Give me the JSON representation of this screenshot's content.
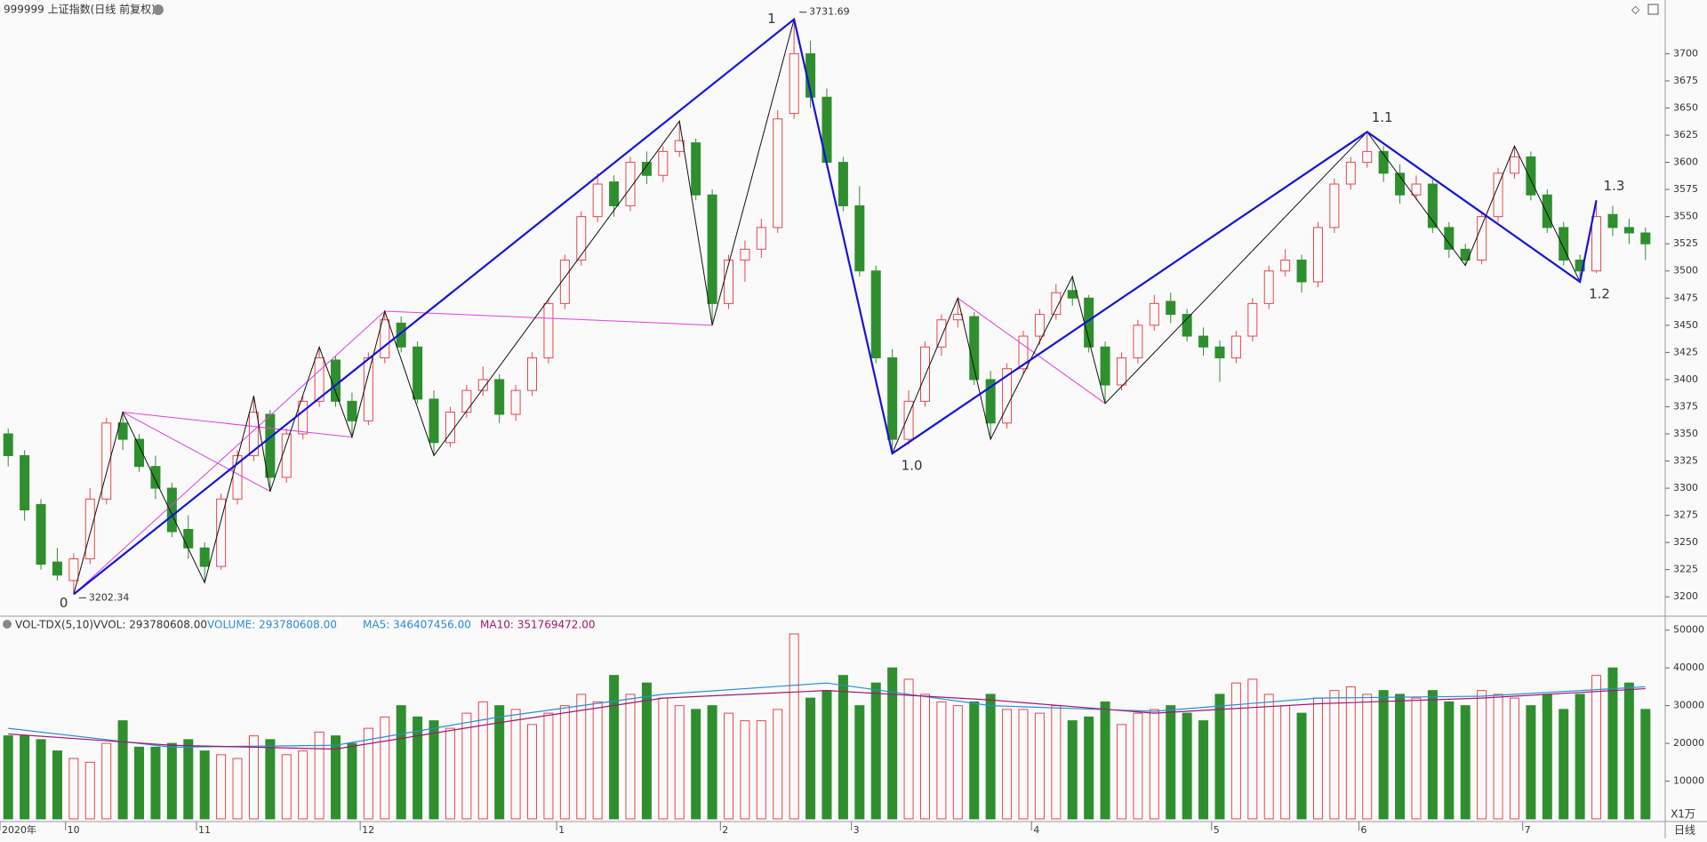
{
  "header": {
    "title": "999999 上证指数(日线 前复权)"
  },
  "chart_data": [
    {
      "type": "candlestick",
      "ylim": [
        3183,
        3738
      ],
      "yticks": [
        3200,
        3225,
        3250,
        3275,
        3300,
        3325,
        3350,
        3375,
        3400,
        3425,
        3450,
        3475,
        3500,
        3525,
        3550,
        3575,
        3600,
        3625,
        3650,
        3675,
        3700
      ],
      "up_color": "#e8474c",
      "down_color": "#2f8f2f",
      "candles": [
        [
          3350,
          3355,
          3320,
          3330
        ],
        [
          3330,
          3335,
          3270,
          3280
        ],
        [
          3285,
          3290,
          3225,
          3230
        ],
        [
          3232,
          3245,
          3215,
          3220
        ],
        [
          3215,
          3240,
          3202.34,
          3235
        ],
        [
          3235,
          3300,
          3230,
          3290
        ],
        [
          3290,
          3365,
          3285,
          3360
        ],
        [
          3360,
          3370,
          3335,
          3345
        ],
        [
          3345,
          3350,
          3315,
          3320
        ],
        [
          3320,
          3330,
          3290,
          3300
        ],
        [
          3300,
          3305,
          3255,
          3260
        ],
        [
          3262,
          3275,
          3235,
          3245
        ],
        [
          3245,
          3250,
          3213,
          3228
        ],
        [
          3228,
          3295,
          3225,
          3290
        ],
        [
          3290,
          3335,
          3285,
          3330
        ],
        [
          3330,
          3385,
          3325,
          3370
        ],
        [
          3368,
          3372,
          3297,
          3310
        ],
        [
          3310,
          3355,
          3305,
          3350
        ],
        [
          3350,
          3385,
          3345,
          3380
        ],
        [
          3380,
          3430,
          3375,
          3420
        ],
        [
          3418,
          3422,
          3375,
          3380
        ],
        [
          3380,
          3388,
          3347,
          3362
        ],
        [
          3362,
          3425,
          3358,
          3420
        ],
        [
          3420,
          3463,
          3415,
          3455
        ],
        [
          3452,
          3458,
          3425,
          3430
        ],
        [
          3430,
          3435,
          3378,
          3382
        ],
        [
          3382,
          3390,
          3330,
          3342
        ],
        [
          3342,
          3375,
          3338,
          3370
        ],
        [
          3370,
          3395,
          3365,
          3390
        ],
        [
          3390,
          3412,
          3385,
          3400
        ],
        [
          3400,
          3405,
          3360,
          3368
        ],
        [
          3368,
          3395,
          3362,
          3390
        ],
        [
          3390,
          3425,
          3385,
          3420
        ],
        [
          3420,
          3475,
          3415,
          3470
        ],
        [
          3470,
          3515,
          3465,
          3510
        ],
        [
          3510,
          3555,
          3505,
          3550
        ],
        [
          3550,
          3590,
          3545,
          3580
        ],
        [
          3582,
          3588,
          3550,
          3560
        ],
        [
          3560,
          3605,
          3555,
          3600
        ],
        [
          3600,
          3610,
          3580,
          3588
        ],
        [
          3588,
          3615,
          3582,
          3610
        ],
        [
          3610,
          3638,
          3605,
          3620
        ],
        [
          3618,
          3622,
          3565,
          3570
        ],
        [
          3570,
          3575,
          3450,
          3470
        ],
        [
          3470,
          3515,
          3465,
          3510
        ],
        [
          3510,
          3528,
          3490,
          3520
        ],
        [
          3520,
          3548,
          3512,
          3540
        ],
        [
          3540,
          3648,
          3535,
          3640
        ],
        [
          3645,
          3731.69,
          3640,
          3700
        ],
        [
          3700,
          3712,
          3650,
          3660
        ],
        [
          3660,
          3668,
          3595,
          3600
        ],
        [
          3600,
          3605,
          3555,
          3560
        ],
        [
          3560,
          3578,
          3495,
          3500
        ],
        [
          3500,
          3505,
          3415,
          3420
        ],
        [
          3420,
          3428,
          3332,
          3345
        ],
        [
          3345,
          3390,
          3340,
          3380
        ],
        [
          3380,
          3435,
          3375,
          3430
        ],
        [
          3430,
          3460,
          3422,
          3455
        ],
        [
          3455,
          3475,
          3448,
          3460
        ],
        [
          3458,
          3462,
          3395,
          3400
        ],
        [
          3400,
          3408,
          3345,
          3360
        ],
        [
          3360,
          3415,
          3355,
          3410
        ],
        [
          3410,
          3445,
          3405,
          3440
        ],
        [
          3440,
          3465,
          3432,
          3460
        ],
        [
          3460,
          3488,
          3455,
          3480
        ],
        [
          3482,
          3495,
          3468,
          3475
        ],
        [
          3475,
          3478,
          3425,
          3430
        ],
        [
          3430,
          3435,
          3378,
          3395
        ],
        [
          3395,
          3425,
          3390,
          3420
        ],
        [
          3420,
          3455,
          3415,
          3450
        ],
        [
          3450,
          3478,
          3445,
          3470
        ],
        [
          3472,
          3480,
          3452,
          3460
        ],
        [
          3460,
          3465,
          3435,
          3440
        ],
        [
          3440,
          3448,
          3422,
          3430
        ],
        [
          3430,
          3436,
          3398,
          3420
        ],
        [
          3420,
          3445,
          3415,
          3440
        ],
        [
          3440,
          3475,
          3435,
          3470
        ],
        [
          3470,
          3505,
          3465,
          3500
        ],
        [
          3500,
          3520,
          3495,
          3510
        ],
        [
          3510,
          3515,
          3480,
          3490
        ],
        [
          3490,
          3545,
          3485,
          3540
        ],
        [
          3540,
          3585,
          3535,
          3580
        ],
        [
          3580,
          3605,
          3575,
          3600
        ],
        [
          3600,
          3628,
          3595,
          3610
        ],
        [
          3610,
          3615,
          3582,
          3590
        ],
        [
          3590,
          3598,
          3562,
          3570
        ],
        [
          3570,
          3588,
          3565,
          3580
        ],
        [
          3580,
          3584,
          3535,
          3540
        ],
        [
          3540,
          3545,
          3512,
          3520
        ],
        [
          3520,
          3525,
          3505,
          3510
        ],
        [
          3510,
          3555,
          3506,
          3550
        ],
        [
          3550,
          3595,
          3545,
          3590
        ],
        [
          3590,
          3615,
          3585,
          3605
        ],
        [
          3605,
          3610,
          3565,
          3570
        ],
        [
          3570,
          3575,
          3535,
          3540
        ],
        [
          3540,
          3545,
          3505,
          3510
        ],
        [
          3510,
          3515,
          3490,
          3500
        ],
        [
          3500,
          3565,
          3498,
          3550
        ],
        [
          3552,
          3560,
          3532,
          3540
        ],
        [
          3540,
          3548,
          3525,
          3535
        ],
        [
          3535,
          3540,
          3510,
          3525
        ]
      ],
      "blue_wave": {
        "color": "#1414d8",
        "x": [
          4,
          48,
          54,
          83,
          96,
          97
        ],
        "values": [
          3202.34,
          3731.69,
          3332,
          3628,
          3490,
          3565
        ],
        "labels": [
          "0",
          "1",
          "1.0",
          "1.1",
          "1.2",
          "1.3"
        ]
      },
      "black_zigzag": {
        "color": "#111111",
        "x": [
          4,
          7,
          12,
          15,
          16,
          19,
          21,
          23,
          26,
          41,
          43,
          48,
          54,
          58,
          60,
          65,
          67,
          83,
          89,
          92,
          96
        ],
        "values": [
          3202.34,
          3370,
          3213,
          3385,
          3297,
          3430,
          3347,
          3463,
          3330,
          3638,
          3450,
          3731.69,
          3332,
          3475,
          3345,
          3495,
          3378,
          3628,
          3505,
          3615,
          3490
        ]
      },
      "magenta_lines": {
        "color": "#e040e0",
        "segments": [
          {
            "x": [
              4,
              23
            ],
            "values": [
              3202.34,
              3463
            ]
          },
          {
            "x": [
              7,
              16
            ],
            "values": [
              3370,
              3297
            ]
          },
          {
            "x": [
              7,
              21
            ],
            "values": [
              3370,
              3347
            ]
          },
          {
            "x": [
              23,
              43
            ],
            "values": [
              3463,
              3450
            ]
          },
          {
            "x": [
              58,
              67
            ],
            "values": [
              3475,
              3378
            ]
          }
        ]
      },
      "date_axis": {
        "labels": [
          "2020年",
          "10",
          "11",
          "12",
          "1",
          "2",
          "3",
          "4",
          "5",
          "6",
          "7"
        ],
        "index": [
          0,
          4,
          12,
          22,
          34,
          44,
          52,
          63,
          74,
          83,
          93
        ],
        "period": "日线"
      }
    },
    {
      "type": "volume",
      "header": {
        "name": "VOL-TDX(5,10)",
        "vvol": "VVOL: 293780608.00",
        "volume": "VOLUME: 293780608.00",
        "ma5": "MA5: 346407456.00",
        "ma10": "MA10: 351769472.00"
      },
      "unit": "X1万",
      "ylim": [
        0,
        53000
      ],
      "yticks": [
        10000,
        20000,
        30000,
        40000,
        50000
      ],
      "values": [
        22000,
        22000,
        21000,
        18000,
        16000,
        15000,
        20000,
        26000,
        19000,
        19000,
        20000,
        21000,
        18000,
        17000,
        16000,
        22000,
        21000,
        17000,
        18000,
        23000,
        22000,
        20000,
        24000,
        27000,
        30000,
        27000,
        26000,
        24000,
        28000,
        31000,
        30000,
        29000,
        25000,
        28000,
        30000,
        33000,
        31000,
        38000,
        33000,
        36000,
        32000,
        30000,
        29000,
        30000,
        28000,
        26000,
        26000,
        29000,
        49000,
        32000,
        34000,
        38000,
        30000,
        36000,
        40000,
        37000,
        33000,
        31000,
        30000,
        31000,
        33000,
        29000,
        29000,
        28000,
        30000,
        26000,
        27000,
        31000,
        25000,
        28000,
        29000,
        30000,
        28000,
        26000,
        33000,
        36000,
        37000,
        33000,
        30000,
        28000,
        32000,
        34000,
        35000,
        33000,
        34000,
        33000,
        32000,
        34000,
        31000,
        30000,
        34000,
        33000,
        32000,
        30000,
        33000,
        29000,
        33000,
        38000,
        40000,
        36000,
        29000
      ],
      "series": [
        {
          "color": "#2a8cd8",
          "x": [
            0,
            10,
            20,
            30,
            40,
            50,
            60,
            70,
            80,
            90,
            100
          ],
          "values": [
            24000,
            19000,
            19500,
            27000,
            33000,
            36000,
            30000,
            28500,
            32000,
            32500,
            35000
          ]
        },
        {
          "color": "#a0186e",
          "x": [
            0,
            10,
            20,
            30,
            40,
            50,
            60,
            70,
            80,
            90,
            100
          ],
          "values": [
            22500,
            19500,
            18500,
            25500,
            32000,
            34000,
            31500,
            28000,
            30500,
            32000,
            34500
          ]
        }
      ]
    }
  ]
}
